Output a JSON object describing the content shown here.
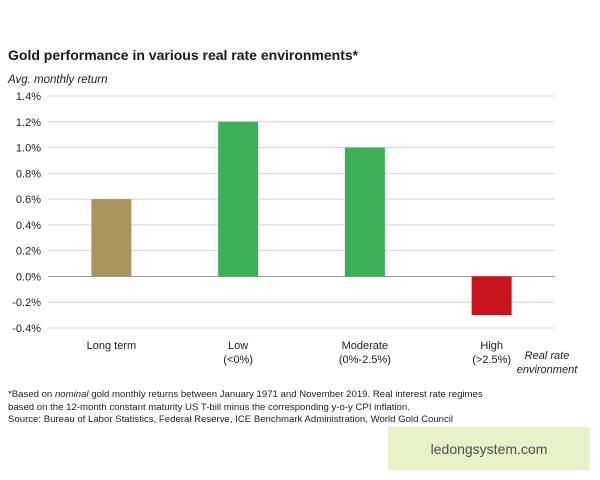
{
  "chart_data": {
    "type": "bar",
    "title": "Gold performance in various real rate environments*",
    "ylabel": "Avg. monthly return",
    "xlabel": [
      "Real rate",
      "environment"
    ],
    "categories": [
      [
        "Long term"
      ],
      [
        "Low",
        "(<0%)"
      ],
      [
        "Moderate",
        "(0%-2.5%)"
      ],
      [
        "High",
        "(>2.5%)"
      ]
    ],
    "values": [
      0.6,
      1.2,
      1.0,
      -0.3
    ],
    "bar_colors": [
      "#a9955e",
      "#3caf57",
      "#3caf57",
      "#c8141d"
    ],
    "ylim": [
      -0.4,
      1.4
    ],
    "yticks": [
      -0.4,
      -0.2,
      0.0,
      0.2,
      0.4,
      0.6,
      0.8,
      1.0,
      1.2,
      1.4
    ],
    "ytick_labels": [
      "-0.4%",
      "-0.2%",
      "0.0%",
      "0.2%",
      "0.4%",
      "0.6%",
      "0.8%",
      "1.0%",
      "1.2%",
      "1.4%"
    ],
    "grid": "horizontal"
  },
  "footnote": {
    "line1_pre": "*Based on ",
    "line1_italic": "nominal",
    "line1_post": " gold monthly returns between January 1971 and November 2019. Real interest rate regimes",
    "line2": "based on the 12-month constant maturity US T-bill minus the corresponding y-o-y CPI inflation.",
    "line3": "Source: Bureau of Labor Statistics, Federal Reserve, ICE Benchmark Administration, World Gold Council"
  },
  "watermark": "ledongsystem.com"
}
